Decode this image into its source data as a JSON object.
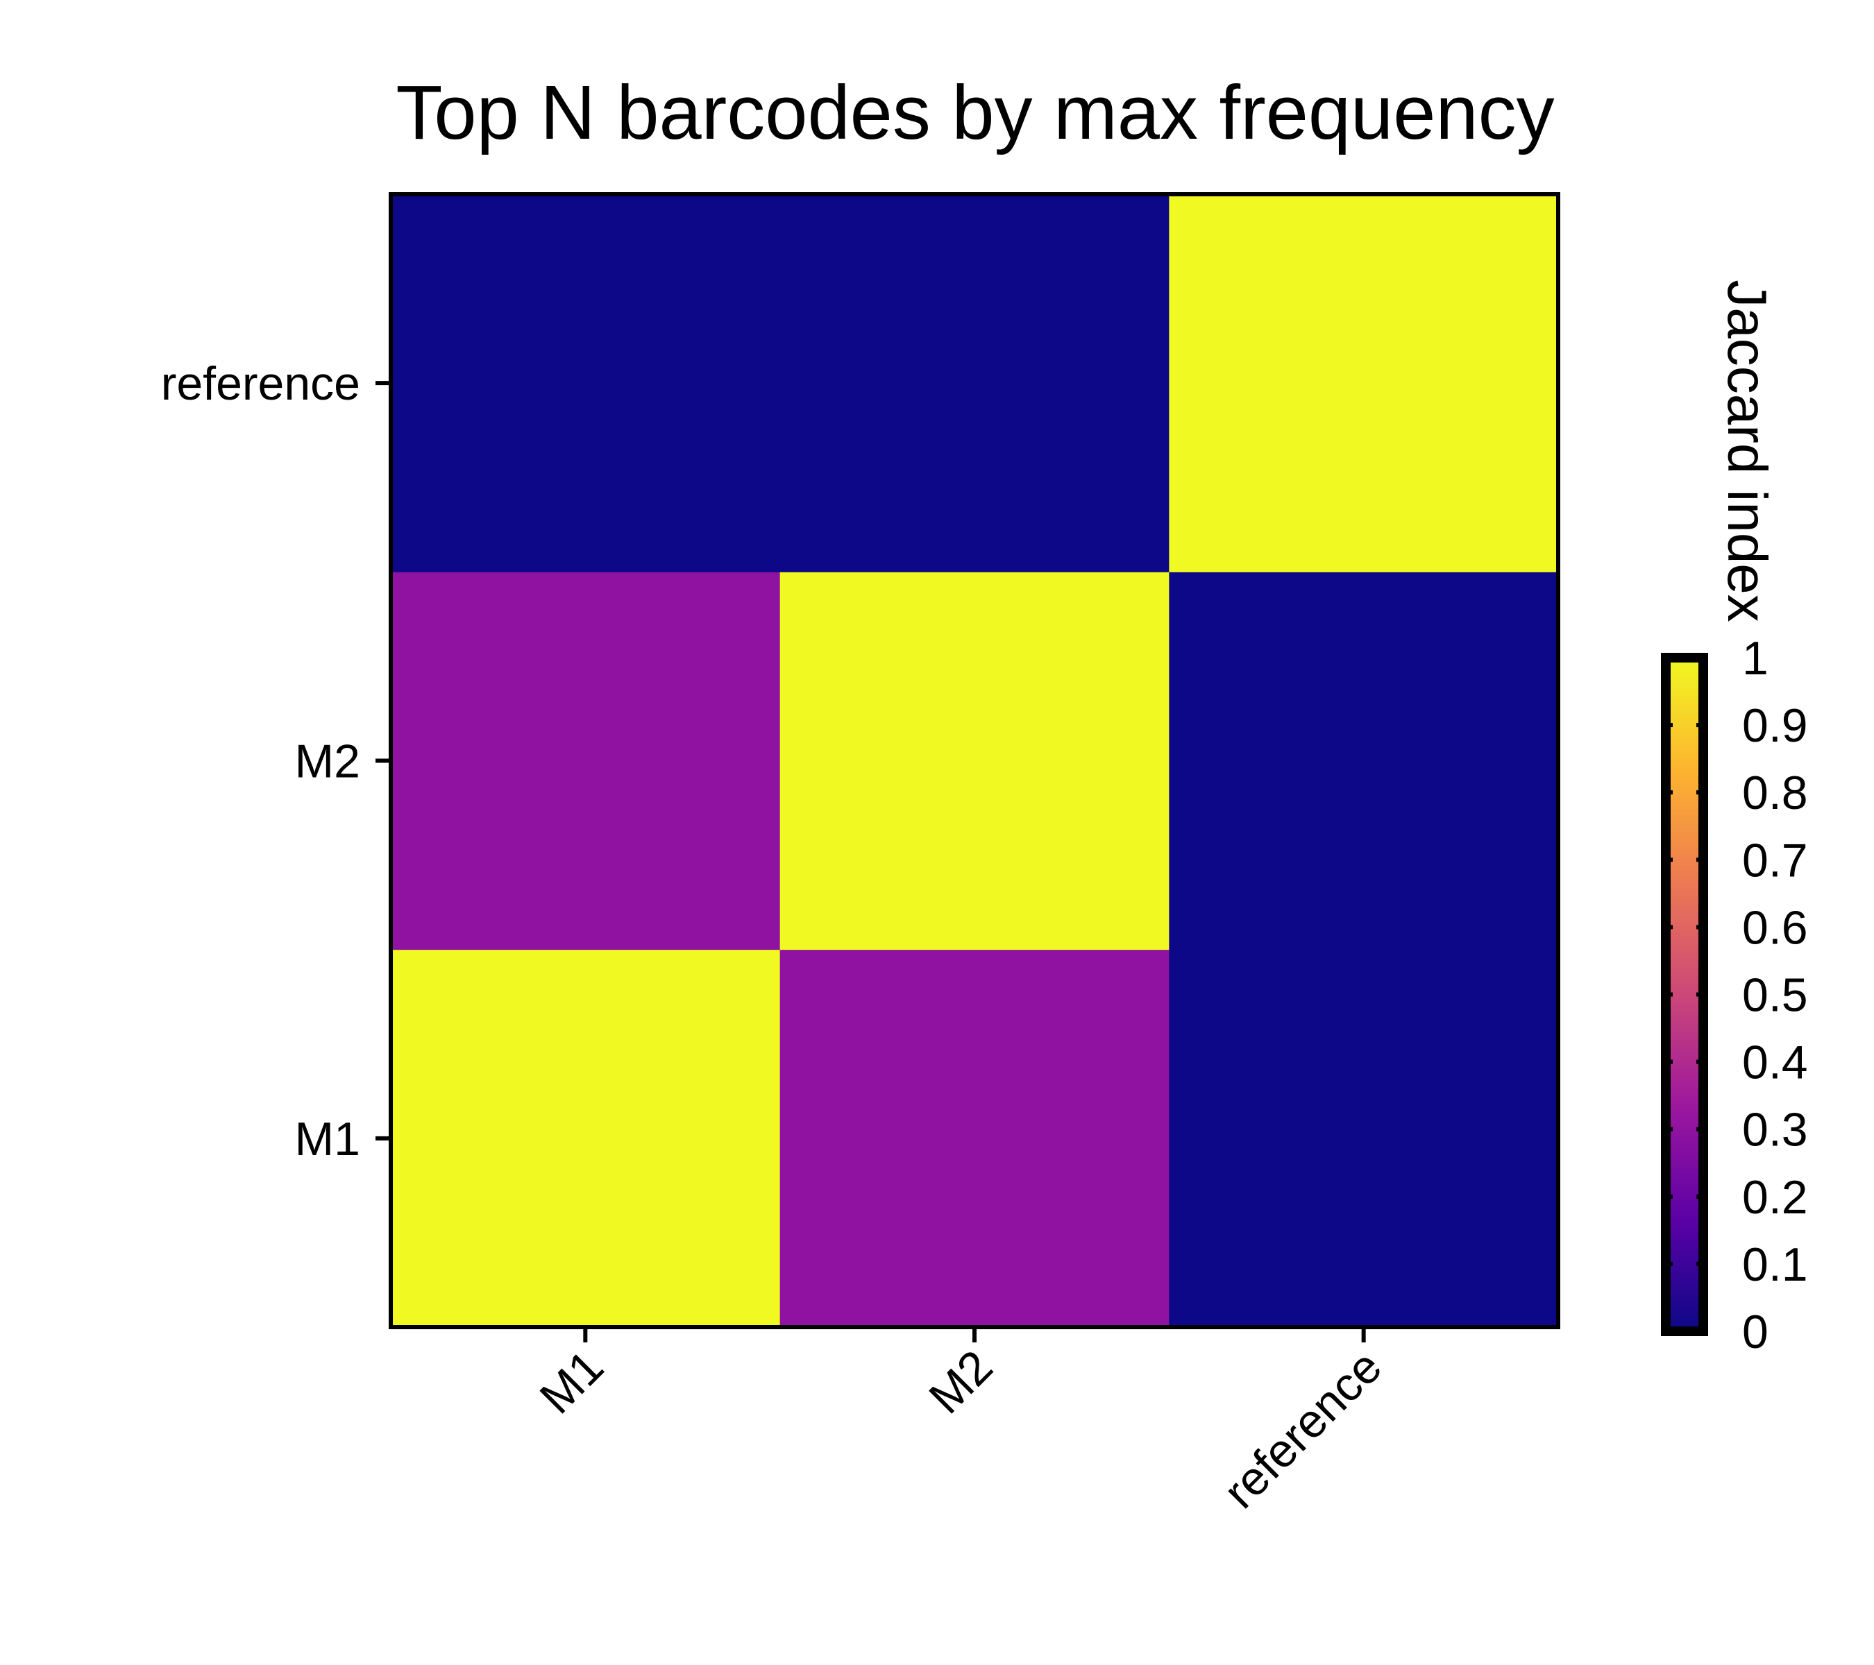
{
  "chart_data": {
    "type": "heatmap",
    "title": "Top N barcodes by max frequency",
    "xlabel": "",
    "ylabel": "",
    "x_categories": [
      "M1",
      "M2",
      "reference"
    ],
    "y_categories": [
      "M1",
      "M2",
      "reference"
    ],
    "values": [
      [
        1,
        0.3,
        0
      ],
      [
        0.3,
        1,
        0
      ],
      [
        0,
        0,
        1
      ]
    ],
    "colorbar": {
      "label": "Jaccard index",
      "min": 0,
      "max": 1,
      "ticks": [
        "0",
        "0.1",
        "0.2",
        "0.3",
        "0.4",
        "0.5",
        "0.6",
        "0.7",
        "0.8",
        "0.9",
        "1"
      ],
      "colormap": "plasma",
      "stops": [
        "#0d0887",
        "#5c01a6",
        "#9c179e",
        "#cc4778",
        "#ed7953",
        "#fdb42f",
        "#f0f921"
      ]
    }
  }
}
